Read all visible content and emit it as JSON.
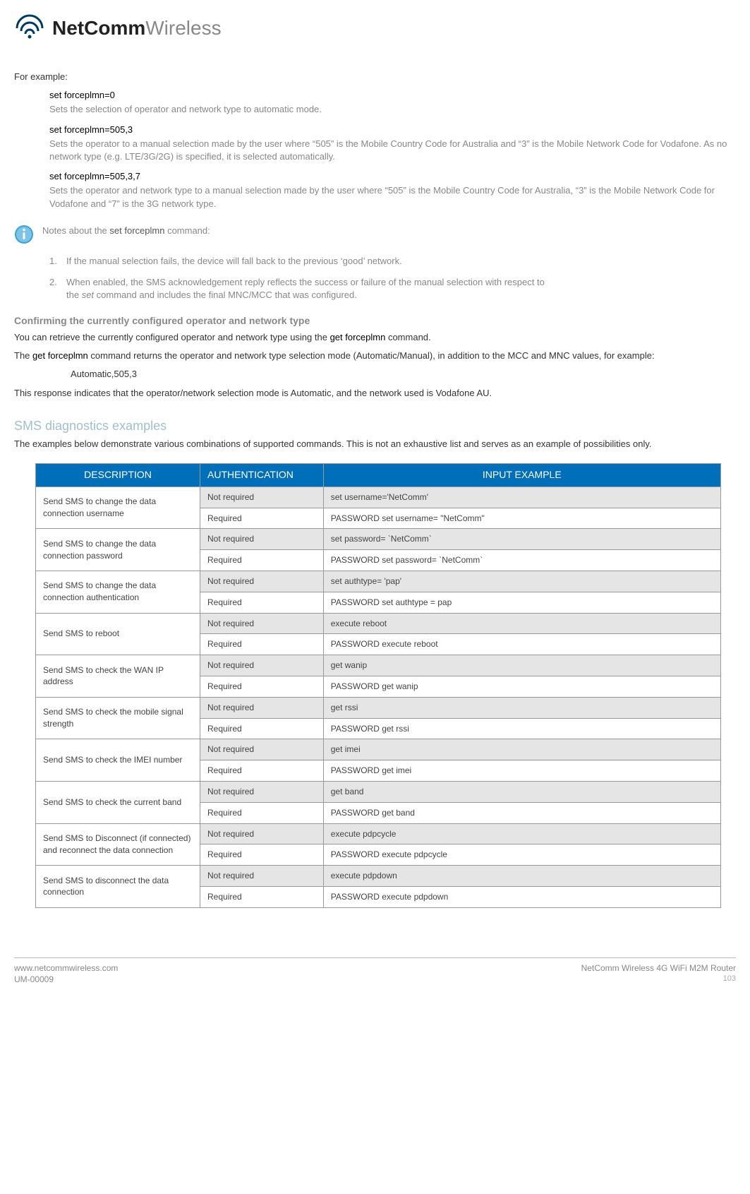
{
  "logo": {
    "bold": "NetComm",
    "light": "Wireless"
  },
  "intro": "For example:",
  "examples": [
    {
      "cmd": "set forceplmn=0",
      "desc": "Sets the selection of operator and network type to automatic mode."
    },
    {
      "cmd": "set forceplmn=505,3",
      "desc": "Sets the operator to a manual selection made by the user where “505” is the Mobile Country Code for Australia and “3” is the Mobile Network Code for Vodafone. As no network type (e.g. LTE/3G/2G) is specified, it is selected automatically."
    },
    {
      "cmd": "set forceplmn=505,3,7",
      "desc": "Sets the operator and network type to a manual selection made by the user where “505” is the Mobile Country Code for Australia, “3” is the Mobile Network Code for Vodafone and “7” is the 3G network type."
    }
  ],
  "notes": {
    "lead_pre": "Notes about the ",
    "lead_cmd": "set forceplmn",
    "lead_post": " command:",
    "items": [
      "If the manual selection fails, the device will fall back to the previous ‘good’ network.",
      "When enabled, the SMS acknowledgement reply reflects the success or failure of the manual selection with respect to"
    ],
    "item2_line2_pre": "the ",
    "item2_line2_em": "set",
    "item2_line2_post": " command and includes the final MNC/MCC that was configured."
  },
  "confirm": {
    "heading": "Confirming the currently configured operator and network type",
    "p1_pre": "You can retrieve the currently configured operator and network type using the ",
    "p1_cmd": "get forceplmn",
    "p1_post": " command.",
    "p2_pre": "The ",
    "p2_cmd": "get forceplmn",
    "p2_post": " command returns the operator and network type selection mode (Automatic/Manual), in addition to the MCC and MNC values, for example:",
    "sample": "Automatic,505,3",
    "p3": "This response indicates that the operator/network selection mode is Automatic, and the network used is Vodafone AU."
  },
  "sms": {
    "heading": "SMS diagnostics examples",
    "intro": "The examples below demonstrate various combinations of supported commands. This is not an exhaustive list and serves as an example of possibilities only.",
    "columns": [
      "DESCRIPTION",
      "AUTHENTICATION",
      "INPUT EXAMPLE"
    ],
    "col_widths": [
      "24%",
      "18%",
      "58%"
    ],
    "header_bg": "#006fba",
    "header_fg": "#ffffff",
    "shade_bg": "#e5e5e5",
    "border_color": "#999999",
    "rows": [
      {
        "desc": "Send SMS to change the data connection username",
        "nr": "set username='NetComm'",
        "r": "PASSWORD set username= \"NetComm\""
      },
      {
        "desc": "Send SMS to change the data connection password",
        "nr": "set password= `NetComm`",
        "r": "PASSWORD set password= `NetComm`"
      },
      {
        "desc": "Send SMS to change the data connection authentication",
        "nr": "set authtype= 'pap'",
        "r": "PASSWORD  set authtype = pap"
      },
      {
        "desc": "Send SMS to reboot",
        "nr": "execute reboot",
        "r": "PASSWORD execute reboot"
      },
      {
        "desc": "Send SMS to check the WAN IP address",
        "nr": "get wanip",
        "r": "PASSWORD get wanip"
      },
      {
        "desc": "Send SMS to check the mobile signal strength",
        "nr": "get rssi",
        "r": "PASSWORD get rssi"
      },
      {
        "desc": "Send SMS to check the IMEI number",
        "nr": "get imei",
        "r": "PASSWORD get imei"
      },
      {
        "desc": "Send SMS to check the current band",
        "nr": "get band",
        "r": "PASSWORD get band"
      },
      {
        "desc": "Send SMS to Disconnect (if connected) and reconnect the data connection",
        "nr": "execute pdpcycle",
        "r": "PASSWORD execute pdpcycle"
      },
      {
        "desc": "Send SMS to disconnect the data connection",
        "nr": "execute pdpdown",
        "r": "PASSWORD execute pdpdown"
      }
    ],
    "auth_labels": {
      "nr": "Not required",
      "r": "Required"
    }
  },
  "footer": {
    "url": "www.netcommwireless.com",
    "docid": "UM-00009",
    "product": "NetComm Wireless 4G WiFi M2M Router",
    "page": "103"
  }
}
